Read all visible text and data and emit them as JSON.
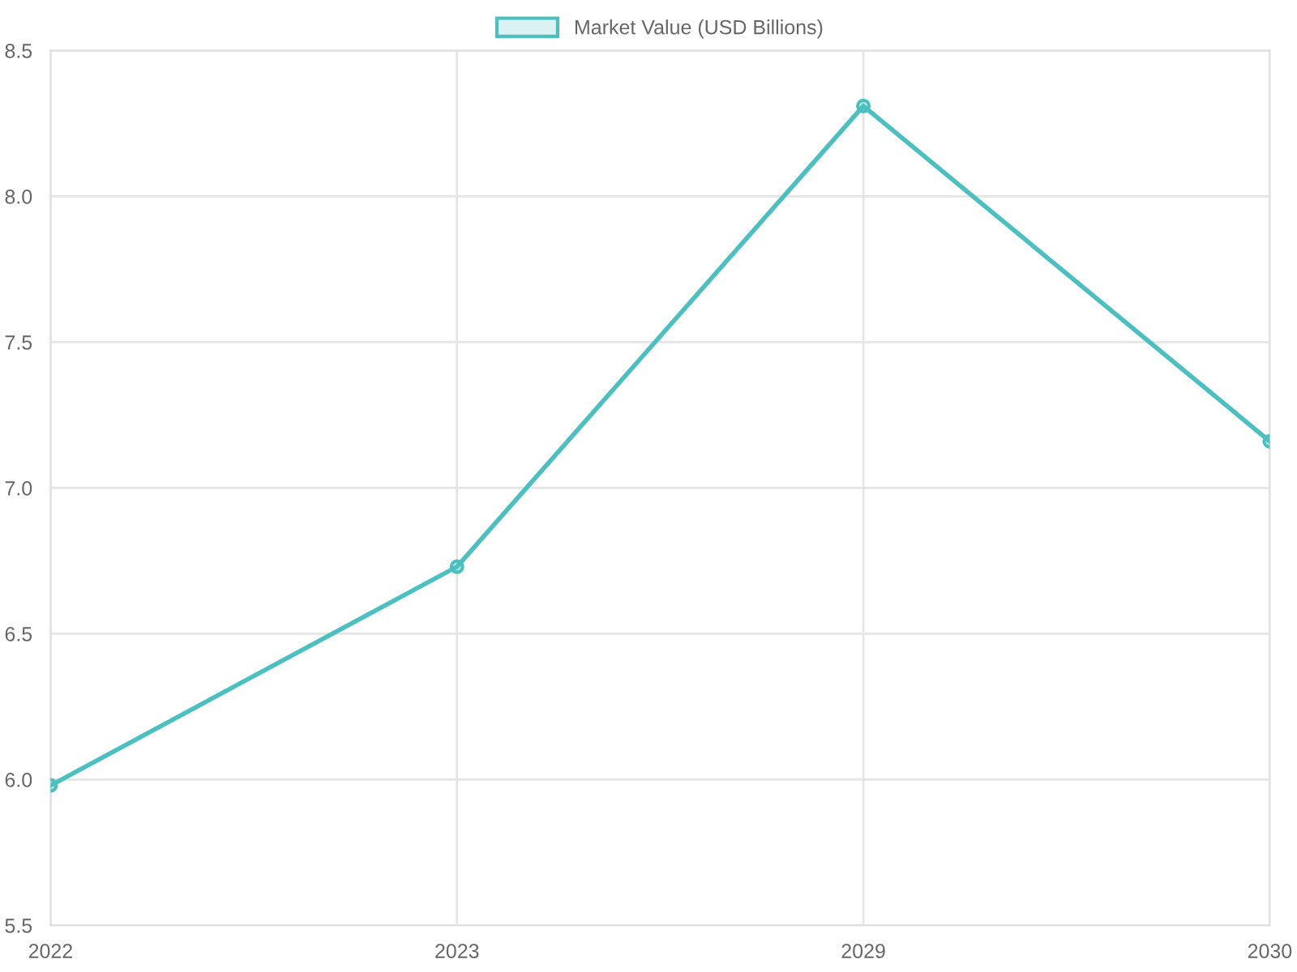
{
  "chart_data": {
    "type": "line",
    "categories": [
      "2022",
      "2023",
      "2029",
      "2030"
    ],
    "series": [
      {
        "name": "Market Value (USD Billions)",
        "color": "#4bc0c0",
        "values": [
          5.98,
          6.73,
          8.31,
          7.16
        ]
      }
    ],
    "ylim": [
      5.5,
      8.5
    ],
    "yticks": [
      {
        "value": 5.5,
        "label": "5.5"
      },
      {
        "value": 6,
        "label": "6.0"
      },
      {
        "value": 6.5,
        "label": "6.5"
      },
      {
        "value": 7,
        "label": "7.0"
      },
      {
        "value": 7.5,
        "label": "7.5"
      },
      {
        "value": 8,
        "label": "8.0"
      },
      {
        "value": 8.5,
        "label": "8.5"
      }
    ],
    "grid": true,
    "legend": "top",
    "marker": "circle",
    "line_style": "solid"
  }
}
